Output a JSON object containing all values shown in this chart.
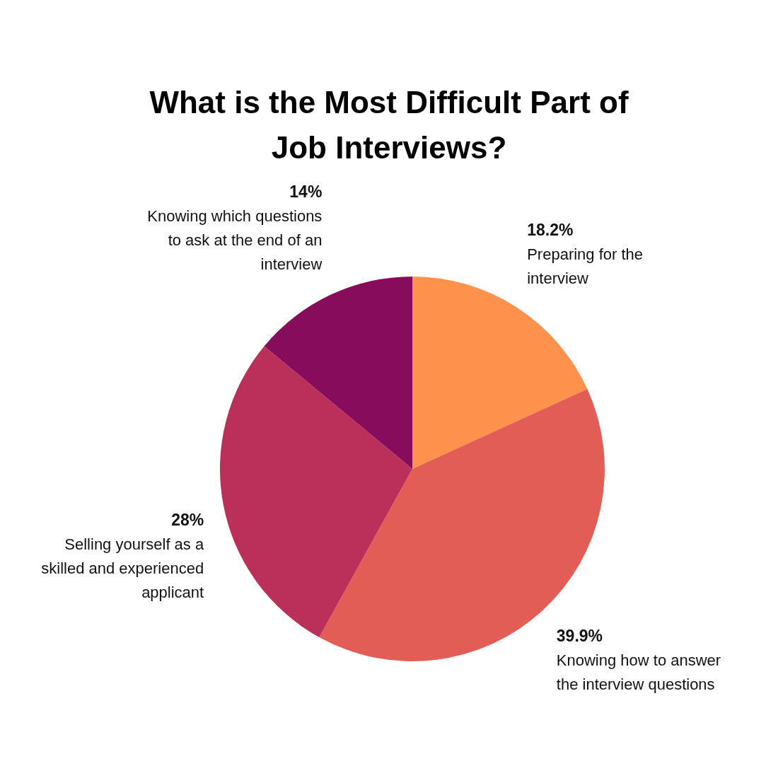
{
  "chart_data": {
    "type": "pie",
    "title": "What is the Most Difficult Part of Job Interviews?",
    "categories": [
      "Preparing for the interview",
      "Knowing how to answer the interview questions",
      "Selling yourself as a skilled and experienced applicant",
      "Knowing which questions to ask at the end of an interview"
    ],
    "values": [
      18.2,
      39.9,
      28,
      14
    ],
    "colors": [
      "#fe914b",
      "#e35d57",
      "#bb2f5b",
      "#880c5c"
    ],
    "value_labels": [
      "18.2%",
      "39.9%",
      "28%",
      "14%"
    ]
  }
}
